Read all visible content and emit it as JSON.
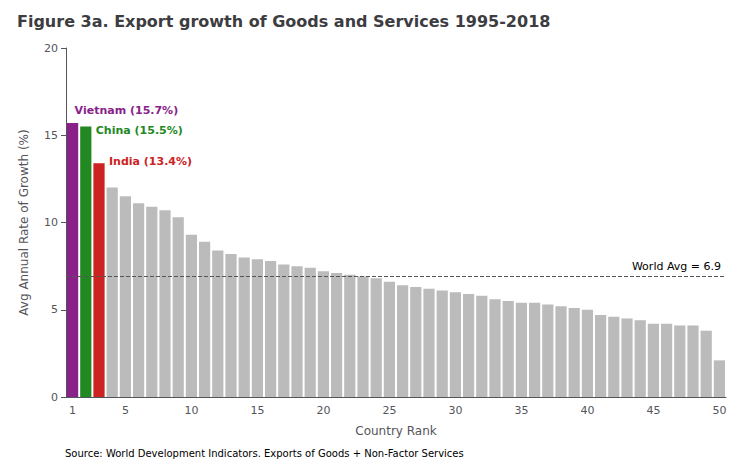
{
  "chart_data": {
    "type": "bar",
    "title": "Figure 3a. Export growth of Goods and Services 1995-2018",
    "xlabel": "Country Rank",
    "ylabel": "Avg Annual Rate of Growth (%)",
    "source": "Source: World Development Indicators. Exports of Goods + Non-Factor Services",
    "categories": [
      "1",
      null,
      null,
      null,
      "5",
      null,
      null,
      null,
      null,
      "10",
      null,
      null,
      null,
      null,
      "15",
      null,
      null,
      null,
      null,
      "20",
      null,
      null,
      null,
      null,
      "25",
      null,
      null,
      null,
      null,
      "30",
      null,
      null,
      null,
      null,
      "35",
      null,
      null,
      null,
      null,
      "40",
      null,
      null,
      null,
      null,
      "45",
      null,
      null,
      null,
      null,
      "50"
    ],
    "values": [
      15.7,
      15.5,
      13.4,
      12.0,
      11.5,
      11.1,
      10.9,
      10.7,
      10.3,
      9.3,
      8.9,
      8.4,
      8.2,
      8.0,
      7.9,
      7.8,
      7.6,
      7.5,
      7.4,
      7.2,
      7.1,
      7.0,
      6.9,
      6.8,
      6.6,
      6.4,
      6.3,
      6.2,
      6.1,
      6.0,
      5.9,
      5.8,
      5.6,
      5.5,
      5.4,
      5.4,
      5.3,
      5.2,
      5.1,
      5.0,
      4.7,
      4.6,
      4.5,
      4.4,
      4.2,
      4.2,
      4.1,
      4.1,
      3.8,
      2.1
    ],
    "colors": [
      "#882288",
      "#228822",
      "#CC2222",
      "#BBBBBB",
      "#BBBBBB",
      "#BBBBBB",
      "#BBBBBB",
      "#BBBBBB",
      "#BBBBBB",
      "#BBBBBB",
      "#BBBBBB",
      "#BBBBBB",
      "#BBBBBB",
      "#BBBBBB",
      "#BBBBBB",
      "#BBBBBB",
      "#BBBBBB",
      "#BBBBBB",
      "#BBBBBB",
      "#BBBBBB",
      "#BBBBBB",
      "#BBBBBB",
      "#BBBBBB",
      "#BBBBBB",
      "#BBBBBB",
      "#BBBBBB",
      "#BBBBBB",
      "#BBBBBB",
      "#BBBBBB",
      "#BBBBBB",
      "#BBBBBB",
      "#BBBBBB",
      "#BBBBBB",
      "#BBBBBB",
      "#BBBBBB",
      "#BBBBBB",
      "#BBBBBB",
      "#BBBBBB",
      "#BBBBBB",
      "#BBBBBB",
      "#BBBBBB",
      "#BBBBBB",
      "#BBBBBB",
      "#BBBBBB",
      "#BBBBBB",
      "#BBBBBB",
      "#BBBBBB",
      "#BBBBBB",
      "#BBBBBB",
      "#BBBBBB"
    ],
    "ylim": [
      0,
      20
    ],
    "yticks": [
      0,
      5,
      10,
      15,
      20
    ],
    "grid": false,
    "reference_line": {
      "value": 6.9,
      "label": "World Avg = 6.9",
      "color": "#555555",
      "line_style": "dashed"
    },
    "annotations": [
      {
        "text": "Vietnam (15.7%)",
        "color": "#882288"
      },
      {
        "text": "China (15.5%)",
        "color": "#228822"
      },
      {
        "text": "India (13.4%)",
        "color": "#CC2222"
      }
    ]
  }
}
